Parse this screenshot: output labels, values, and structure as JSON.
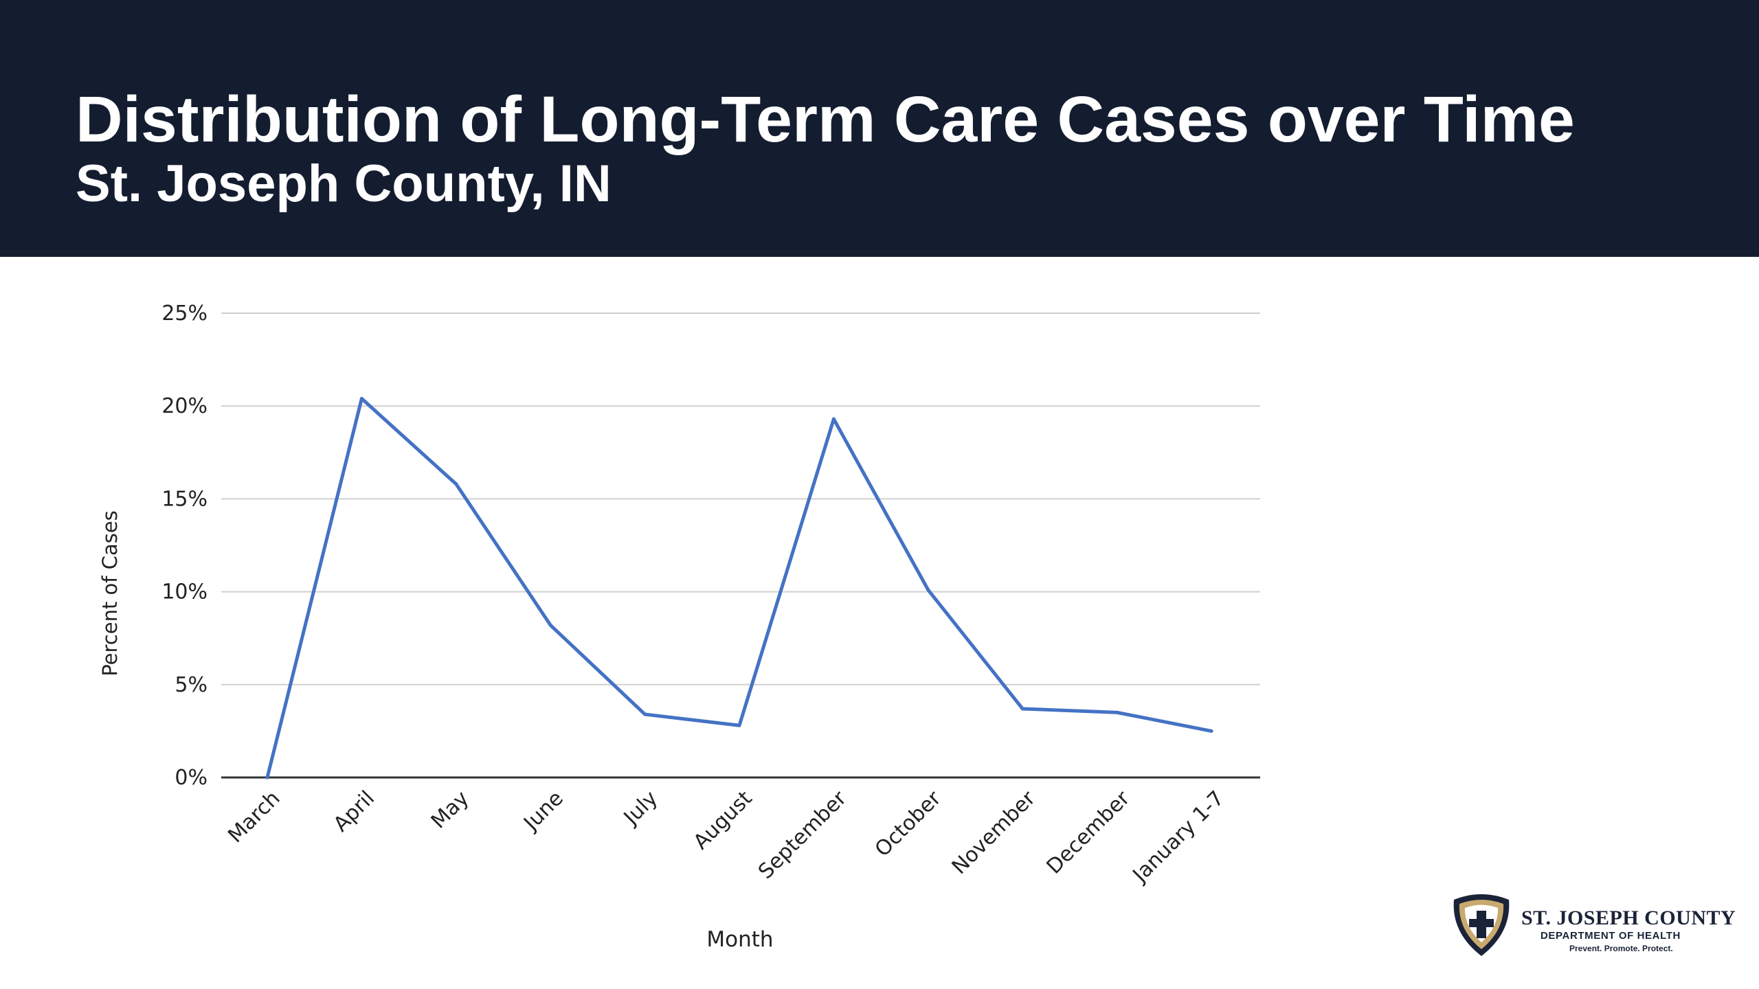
{
  "header": {
    "title": "Distribution of Long-Term Care Cases over Time",
    "subtitle": "St. Joseph County, IN"
  },
  "colors": {
    "header_bg": "#141d30",
    "series_line": "#4472c4",
    "gridline": "#d0d0d0",
    "logo_shield": "#c9a96e"
  },
  "chart_data": {
    "type": "line",
    "title": "",
    "xlabel": "Month",
    "ylabel": "Percent of Cases",
    "categories": [
      "March",
      "April",
      "May",
      "June",
      "July",
      "August",
      "September",
      "October",
      "November",
      "December",
      "January 1-7"
    ],
    "series": [
      {
        "values": [
          0.0,
          20.4,
          15.8,
          8.2,
          3.4,
          2.8,
          19.3,
          10.1,
          3.7,
          3.5,
          2.5
        ]
      }
    ],
    "ylim": [
      0,
      25
    ],
    "yticks": [
      0,
      5,
      10,
      15,
      20,
      25
    ],
    "ytick_labels": [
      "0%",
      "5%",
      "10%",
      "15%",
      "20%",
      "25%"
    ],
    "grid": true,
    "legend": "none"
  },
  "logo": {
    "icon": "shield-cross-icon",
    "name": "ST. JOSEPH COUNTY",
    "department": "DEPARTMENT OF HEALTH",
    "tagline": "Prevent. Promote. Protect."
  }
}
